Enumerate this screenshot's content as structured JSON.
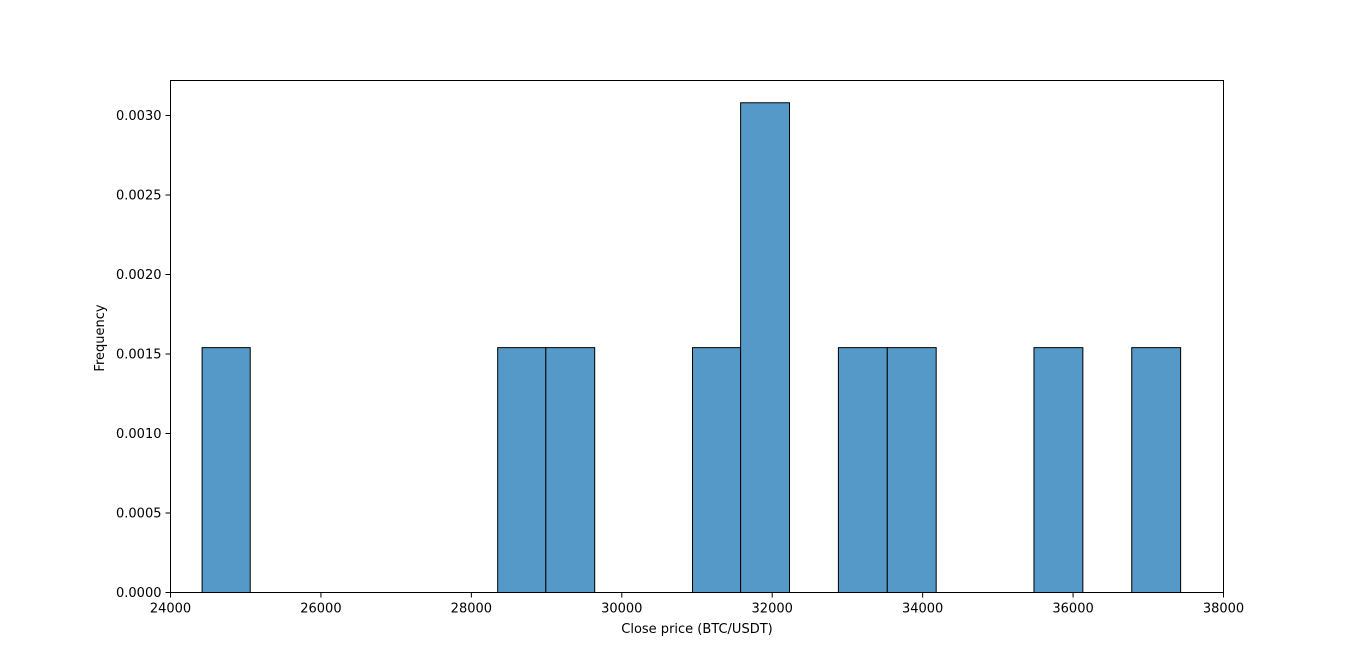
{
  "chart_data": {
    "type": "bar",
    "title": "",
    "xlabel": "Close price (BTC/USDT)",
    "ylabel": "Frequency",
    "xlim": [
      24000,
      38000
    ],
    "ylim": [
      0,
      0.00322
    ],
    "x_ticks": [
      24000,
      26000,
      28000,
      30000,
      32000,
      34000,
      36000,
      38000
    ],
    "x_tick_labels": [
      "24000",
      "26000",
      "28000",
      "30000",
      "32000",
      "34000",
      "36000",
      "38000"
    ],
    "y_ticks": [
      0,
      0.0005,
      0.001,
      0.0015,
      0.002,
      0.0025,
      0.003
    ],
    "y_tick_labels": [
      "0.0000",
      "0.0005",
      "0.0010",
      "0.0015",
      "0.0020",
      "0.0025",
      "0.0030"
    ],
    "grid": false,
    "bar_color": "#5499c7",
    "edge_color": "#000000",
    "bins": [
      {
        "x0": 24420,
        "x1": 25060,
        "value": 0.00154
      },
      {
        "x0": 28350,
        "x1": 28990,
        "value": 0.00154
      },
      {
        "x0": 28990,
        "x1": 29640,
        "value": 0.00154
      },
      {
        "x0": 30940,
        "x1": 31580,
        "value": 0.00154
      },
      {
        "x0": 31580,
        "x1": 32230,
        "value": 0.00308
      },
      {
        "x0": 32880,
        "x1": 33530,
        "value": 0.00154
      },
      {
        "x0": 33530,
        "x1": 34180,
        "value": 0.00154
      },
      {
        "x0": 35480,
        "x1": 36130,
        "value": 0.00154
      },
      {
        "x0": 36780,
        "x1": 37430,
        "value": 0.00154
      }
    ]
  }
}
